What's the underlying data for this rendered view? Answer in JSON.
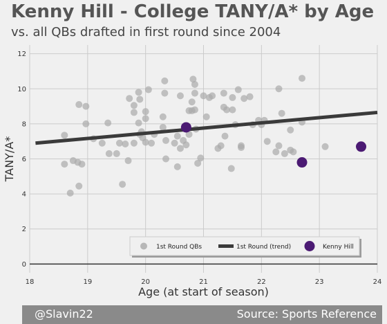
{
  "header": {
    "title": "Kenny Hill - College TANY/A* by Age",
    "subtitle": "vs. all QBs drafted in first round since 2004"
  },
  "footer": {
    "handle": "@Slavin22",
    "source": "Source: Sports Reference"
  },
  "colors": {
    "background": "#f0f0f0",
    "qb_dots": "#a9a9a9",
    "trend": "#3a3a3a",
    "highlight": "#4b1a73",
    "grid": "#cbcbcb",
    "footer_bg": "#8a8a8a"
  },
  "chart_data": {
    "type": "scatter",
    "xlabel": "Age (at start of season)",
    "ylabel": "TANY/A*",
    "xlim": [
      18,
      24
    ],
    "ylim": [
      -0.5,
      12.5
    ],
    "xticks": [
      18,
      19,
      20,
      21,
      22,
      23,
      24
    ],
    "yticks": [
      0,
      2,
      4,
      6,
      8,
      10,
      12
    ],
    "grid": true,
    "legend_placement": "bottom-right",
    "legend": [
      "1st Round QBs",
      "1st Round (trend)",
      "Kenny Hill"
    ],
    "series": [
      {
        "name": "1st Round QBs",
        "kind": "points",
        "points": [
          [
            18.6,
            7.35
          ],
          [
            18.6,
            5.7
          ],
          [
            18.75,
            5.9
          ],
          [
            18.83,
            5.8
          ],
          [
            18.85,
            9.1
          ],
          [
            18.9,
            5.7
          ],
          [
            18.85,
            4.45
          ],
          [
            18.7,
            4.05
          ],
          [
            18.97,
            9.0
          ],
          [
            18.97,
            8.0
          ],
          [
            19.1,
            7.15
          ],
          [
            19.25,
            6.9
          ],
          [
            19.35,
            8.05
          ],
          [
            19.37,
            6.3
          ],
          [
            19.5,
            6.3
          ],
          [
            19.55,
            6.9
          ],
          [
            19.6,
            4.55
          ],
          [
            19.65,
            6.85
          ],
          [
            19.7,
            5.9
          ],
          [
            19.72,
            9.45
          ],
          [
            19.8,
            6.9
          ],
          [
            19.8,
            8.65
          ],
          [
            19.8,
            9.05
          ],
          [
            19.9,
            7.4
          ],
          [
            19.93,
            7.55
          ],
          [
            19.95,
            7.2
          ],
          [
            19.88,
            8.05
          ],
          [
            19.9,
            9.4
          ],
          [
            19.88,
            9.8
          ],
          [
            20.0,
            8.3
          ],
          [
            20.0,
            8.7
          ],
          [
            20.0,
            6.95
          ],
          [
            20.05,
            9.95
          ],
          [
            20.1,
            6.9
          ],
          [
            20.15,
            7.4
          ],
          [
            20.3,
            7.8
          ],
          [
            20.3,
            8.4
          ],
          [
            20.33,
            10.45
          ],
          [
            20.33,
            9.75
          ],
          [
            20.35,
            6.0
          ],
          [
            20.35,
            7.05
          ],
          [
            20.5,
            6.9
          ],
          [
            20.55,
            5.55
          ],
          [
            20.55,
            7.3
          ],
          [
            20.6,
            9.6
          ],
          [
            20.6,
            6.6
          ],
          [
            20.65,
            7.05
          ],
          [
            20.7,
            6.8
          ],
          [
            20.75,
            7.4
          ],
          [
            20.75,
            8.75
          ],
          [
            20.8,
            9.25
          ],
          [
            20.8,
            8.75
          ],
          [
            20.82,
            10.55
          ],
          [
            20.85,
            8.8
          ],
          [
            20.85,
            10.25
          ],
          [
            20.85,
            9.75
          ],
          [
            20.87,
            7.7
          ],
          [
            20.9,
            5.75
          ],
          [
            20.95,
            6.05
          ],
          [
            21.0,
            9.6
          ],
          [
            21.05,
            8.4
          ],
          [
            21.1,
            9.5
          ],
          [
            21.15,
            9.6
          ],
          [
            21.25,
            6.6
          ],
          [
            21.3,
            6.75
          ],
          [
            21.35,
            8.95
          ],
          [
            21.35,
            9.75
          ],
          [
            21.37,
            7.3
          ],
          [
            21.4,
            8.8
          ],
          [
            21.48,
            5.45
          ],
          [
            21.5,
            8.8
          ],
          [
            21.5,
            9.5
          ],
          [
            21.55,
            7.95
          ],
          [
            21.6,
            9.95
          ],
          [
            21.65,
            6.65
          ],
          [
            21.65,
            6.75
          ],
          [
            21.7,
            9.45
          ],
          [
            21.8,
            9.55
          ],
          [
            21.85,
            7.95
          ],
          [
            21.95,
            8.2
          ],
          [
            22.0,
            7.95
          ],
          [
            22.05,
            8.2
          ],
          [
            22.1,
            7.0
          ],
          [
            22.25,
            6.4
          ],
          [
            22.3,
            10.0
          ],
          [
            22.3,
            6.75
          ],
          [
            22.35,
            8.6
          ],
          [
            22.4,
            6.3
          ],
          [
            22.5,
            7.65
          ],
          [
            22.5,
            6.5
          ],
          [
            22.55,
            6.4
          ],
          [
            22.7,
            8.1
          ],
          [
            22.7,
            10.6
          ],
          [
            23.1,
            6.7
          ]
        ]
      },
      {
        "name": "1st Round (trend)",
        "kind": "line",
        "x": [
          18.1,
          24.0
        ],
        "y": [
          6.9,
          8.65
        ]
      },
      {
        "name": "Kenny Hill",
        "kind": "points",
        "points": [
          [
            20.7,
            7.8
          ],
          [
            22.7,
            5.8
          ],
          [
            23.72,
            6.7
          ]
        ]
      }
    ]
  }
}
